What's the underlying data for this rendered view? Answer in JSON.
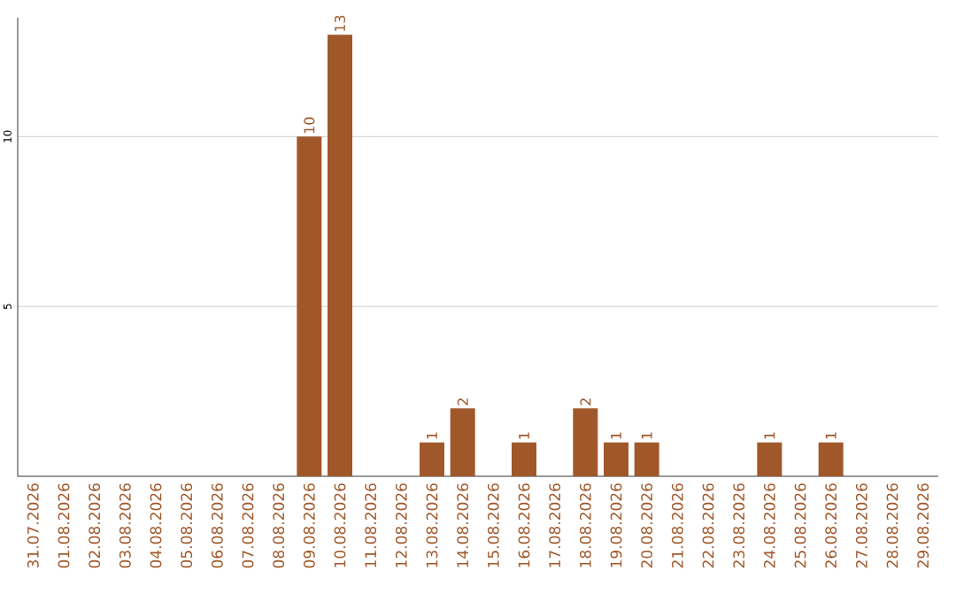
{
  "chart_data": {
    "type": "bar",
    "categories": [
      "31.07.2026",
      "01.08.2026",
      "02.08.2026",
      "03.08.2026",
      "04.08.2026",
      "05.08.2026",
      "06.08.2026",
      "07.08.2026",
      "08.08.2026",
      "09.08.2026",
      "10.08.2026",
      "11.08.2026",
      "12.08.2026",
      "13.08.2026",
      "14.08.2026",
      "15.08.2026",
      "16.08.2026",
      "17.08.2026",
      "18.08.2026",
      "19.08.2026",
      "20.08.2026",
      "21.08.2026",
      "22.08.2026",
      "23.08.2026",
      "24.08.2026",
      "25.08.2026",
      "26.08.2026",
      "27.08.2026",
      "28.08.2026",
      "29.08.2026"
    ],
    "values": [
      0,
      0,
      0,
      0,
      0,
      0,
      0,
      0,
      0,
      10,
      13,
      0,
      0,
      1,
      2,
      0,
      1,
      0,
      2,
      1,
      1,
      0,
      0,
      0,
      1,
      0,
      1,
      0,
      0,
      0
    ],
    "value_labels": [
      null,
      null,
      null,
      null,
      null,
      null,
      null,
      null,
      null,
      "10",
      "13",
      null,
      null,
      "1",
      "2",
      null,
      "1",
      null,
      "2",
      "1",
      "1",
      null,
      null,
      null,
      "1",
      null,
      "1",
      null,
      null,
      null
    ],
    "color": "#a0582a",
    "ylim": [
      0,
      13.5
    ],
    "yticks": [
      5,
      10
    ],
    "grid": "y"
  }
}
